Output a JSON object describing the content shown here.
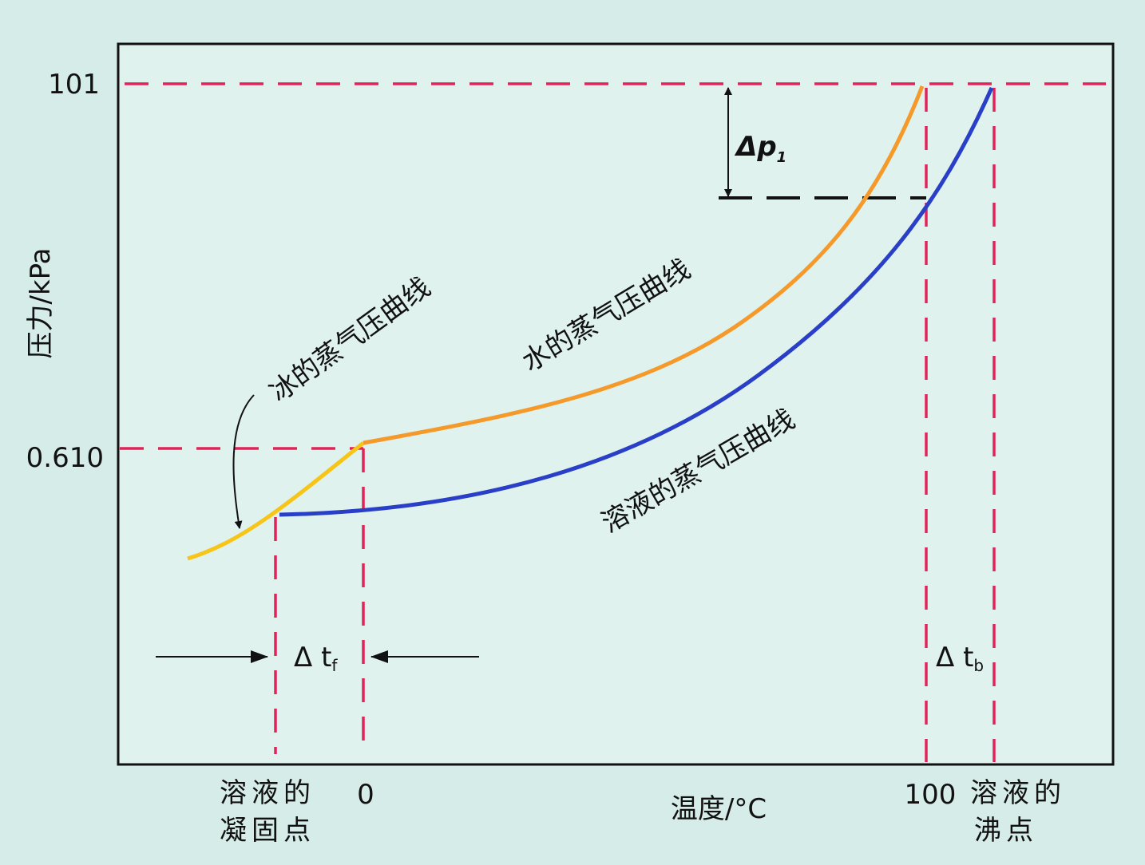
{
  "y_axis": {
    "label": "压力/kPa",
    "ticks": [
      "101",
      "0.610"
    ]
  },
  "x_axis": {
    "label": "温度/°C",
    "ticks": [
      "0",
      "100"
    ]
  },
  "annotations": {
    "freezing_point": [
      "溶液的",
      "凝固点"
    ],
    "boiling_point": [
      "溶液的",
      "沸点"
    ],
    "ice_curve": "冰的蒸气压曲线",
    "water_curve": "水的蒸气压曲线",
    "solution_curve": "溶液的蒸气压曲线",
    "delta_p": {
      "symbol": "Δp",
      "sub": "1"
    },
    "delta_tf": {
      "symbol": "Δ t",
      "sub": "f"
    },
    "delta_tb": {
      "symbol": "Δ t",
      "sub": "b"
    }
  }
}
